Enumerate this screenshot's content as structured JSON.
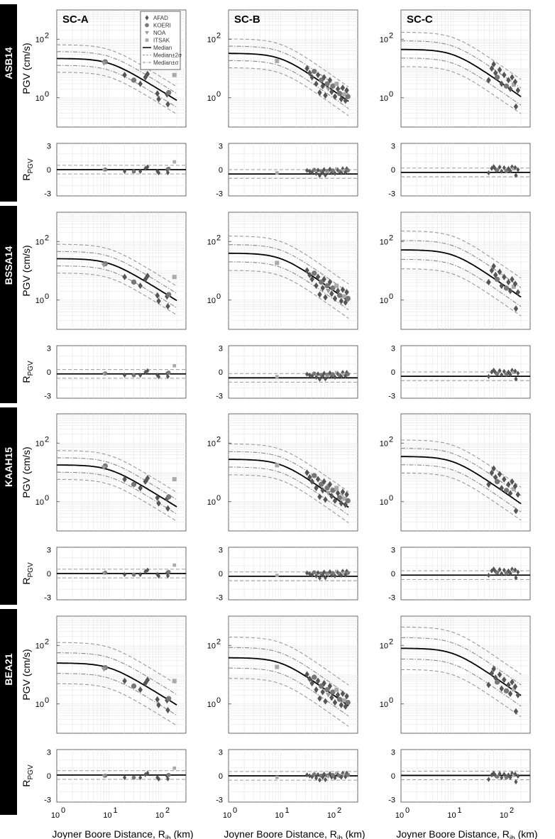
{
  "columns": [
    "SC-A",
    "SC-B",
    "SC-C"
  ],
  "rows": [
    "ASB14",
    "BSSA14",
    "KAAH15",
    "BEA21"
  ],
  "xlabel_main": "Joyner Boore Distance, R",
  "xlabel_sub": "jb",
  "xlabel_unit": " (km)",
  "ylabel_pgv": "PGV (cm/s)",
  "ylabel_res_main": "R",
  "ylabel_res_sub": "PGV",
  "legend": [
    {
      "label": "AFAD",
      "marker": "diamond",
      "color": "#555555"
    },
    {
      "label": "KOERI",
      "marker": "circle",
      "color": "#777777"
    },
    {
      "label": "NOA",
      "marker": "triangle-down",
      "color": "#999999"
    },
    {
      "label": "ITSAK",
      "marker": "square",
      "color": "#aaaaaa"
    },
    {
      "label": "Median",
      "marker": "line-solid"
    },
    {
      "label": "Median±2σ",
      "marker": "line-dashed"
    },
    {
      "label": "Median±σ",
      "marker": "line-dashdot"
    }
  ],
  "chart_data": {
    "type": "scatter",
    "x_scale": "log",
    "xlim": [
      1,
      300
    ],
    "x_ticks": [
      {
        "v": 1,
        "e": "0"
      },
      {
        "v": 10,
        "e": "1"
      },
      {
        "v": 100,
        "e": "2"
      }
    ],
    "pgv_ylim": [
      0.1,
      1000
    ],
    "pgv_yticks": [
      {
        "v": 1,
        "e": "0"
      },
      {
        "v": 100,
        "e": "2"
      }
    ],
    "res_ylim": [
      -3,
      3
    ],
    "res_yticks": [
      "3",
      "0",
      "-3"
    ],
    "median_params": {
      "ASB14": {
        "SC-A": [
          22,
          0.55,
          0.4
        ],
        "SC-B": [
          33,
          0.63,
          0.42
        ],
        "SC-C": [
          45,
          0.62,
          0.5
        ]
      },
      "BSSA14": {
        "SC-A": [
          26,
          0.55,
          0.42
        ],
        "SC-B": [
          40,
          0.63,
          0.5
        ],
        "SC-C": [
          52,
          0.62,
          0.55
        ]
      },
      "KAAH15": {
        "SC-A": [
          18,
          0.55,
          0.42
        ],
        "SC-B": [
          28,
          0.63,
          0.45
        ],
        "SC-C": [
          35,
          0.62,
          0.48
        ]
      },
      "BEA21": {
        "SC-A": [
          25,
          0.55,
          0.6
        ],
        "SC-B": [
          38,
          0.63,
          0.6
        ],
        "SC-C": [
          80,
          0.62,
          0.62
        ]
      }
    },
    "residual_bias": {
      "ASB14": {
        "SC-A": 0.0,
        "SC-B": -0.55,
        "SC-C": -0.35
      },
      "BSSA14": {
        "SC-A": -0.25,
        "SC-B": -0.75,
        "SC-C": -0.55
      },
      "KAAH15": {
        "SC-A": 0.0,
        "SC-B": -0.35,
        "SC-C": -0.2
      },
      "BEA21": {
        "SC-A": 0.1,
        "SC-B": 0.0,
        "SC-C": 0.05
      }
    },
    "points": {
      "SC-A": [
        {
          "x": 8.5,
          "y": 17,
          "m": "circle"
        },
        {
          "x": 8,
          "y": 15,
          "m": "triangle-down"
        },
        {
          "x": 20,
          "y": 6,
          "m": "diamond"
        },
        {
          "x": 30,
          "y": 4,
          "m": "circle"
        },
        {
          "x": 40,
          "y": 3,
          "m": "diamond"
        },
        {
          "x": 50,
          "y": 5,
          "m": "diamond"
        },
        {
          "x": 55,
          "y": 6.5,
          "m": "diamond"
        },
        {
          "x": 85,
          "y": 1.4,
          "m": "diamond"
        },
        {
          "x": 90,
          "y": 0.9,
          "m": "diamond"
        },
        {
          "x": 130,
          "y": 1.3,
          "m": "diamond"
        },
        {
          "x": 135,
          "y": 0.6,
          "m": "diamond"
        },
        {
          "x": 140,
          "y": 1.5,
          "m": "circle"
        },
        {
          "x": 180,
          "y": 6,
          "m": "square"
        }
      ],
      "SC-B": [
        {
          "x": 8.5,
          "y": 18,
          "m": "square"
        },
        {
          "x": 32,
          "y": 10,
          "m": "diamond"
        },
        {
          "x": 36,
          "y": 7,
          "m": "diamond"
        },
        {
          "x": 40,
          "y": 5,
          "m": "diamond"
        },
        {
          "x": 44,
          "y": 8,
          "m": "circle"
        },
        {
          "x": 48,
          "y": 3,
          "m": "diamond"
        },
        {
          "x": 52,
          "y": 6,
          "m": "diamond"
        },
        {
          "x": 56,
          "y": 1.5,
          "m": "diamond"
        },
        {
          "x": 60,
          "y": 4,
          "m": "circle"
        },
        {
          "x": 64,
          "y": 2.5,
          "m": "diamond"
        },
        {
          "x": 68,
          "y": 5,
          "m": "diamond"
        },
        {
          "x": 72,
          "y": 1.2,
          "m": "diamond"
        },
        {
          "x": 78,
          "y": 3,
          "m": "circle"
        },
        {
          "x": 82,
          "y": 2,
          "m": "triangle-down"
        },
        {
          "x": 88,
          "y": 4,
          "m": "diamond"
        },
        {
          "x": 95,
          "y": 1.6,
          "m": "diamond"
        },
        {
          "x": 100,
          "y": 2.5,
          "m": "circle"
        },
        {
          "x": 110,
          "y": 1.1,
          "m": "diamond"
        },
        {
          "x": 118,
          "y": 3,
          "m": "square"
        },
        {
          "x": 125,
          "y": 2,
          "m": "diamond"
        },
        {
          "x": 135,
          "y": 1.4,
          "m": "circle"
        },
        {
          "x": 145,
          "y": 0.9,
          "m": "diamond"
        },
        {
          "x": 155,
          "y": 2.2,
          "m": "diamond"
        },
        {
          "x": 165,
          "y": 1.3,
          "m": "square"
        },
        {
          "x": 175,
          "y": 0.8,
          "m": "diamond"
        },
        {
          "x": 185,
          "y": 1.8,
          "m": "diamond"
        },
        {
          "x": 195,
          "y": 1.1,
          "m": "circle"
        }
      ],
      "SC-C": [
        {
          "x": 48,
          "y": 4,
          "m": "diamond"
        },
        {
          "x": 55,
          "y": 10,
          "m": "diamond"
        },
        {
          "x": 60,
          "y": 14,
          "m": "diamond"
        },
        {
          "x": 65,
          "y": 7,
          "m": "diamond"
        },
        {
          "x": 70,
          "y": 5,
          "m": "circle"
        },
        {
          "x": 78,
          "y": 9,
          "m": "diamond"
        },
        {
          "x": 85,
          "y": 3,
          "m": "diamond"
        },
        {
          "x": 95,
          "y": 6,
          "m": "diamond"
        },
        {
          "x": 105,
          "y": 2.5,
          "m": "circle"
        },
        {
          "x": 115,
          "y": 4,
          "m": "diamond"
        },
        {
          "x": 125,
          "y": 2,
          "m": "diamond"
        },
        {
          "x": 135,
          "y": 5,
          "m": "diamond"
        },
        {
          "x": 145,
          "y": 2.8,
          "m": "square"
        },
        {
          "x": 155,
          "y": 3.5,
          "m": "diamond"
        },
        {
          "x": 160,
          "y": 0.5,
          "m": "diamond"
        },
        {
          "x": 175,
          "y": 1.8,
          "m": "diamond"
        }
      ]
    }
  },
  "colors": {
    "marker_dark": "#555555",
    "marker_mid": "#777777",
    "marker_light": "#999999",
    "marker_pale": "#aaaaaa",
    "median": "#000000",
    "band": "#999999",
    "grid": "#e6e6e6",
    "side_bar": "#000000"
  }
}
